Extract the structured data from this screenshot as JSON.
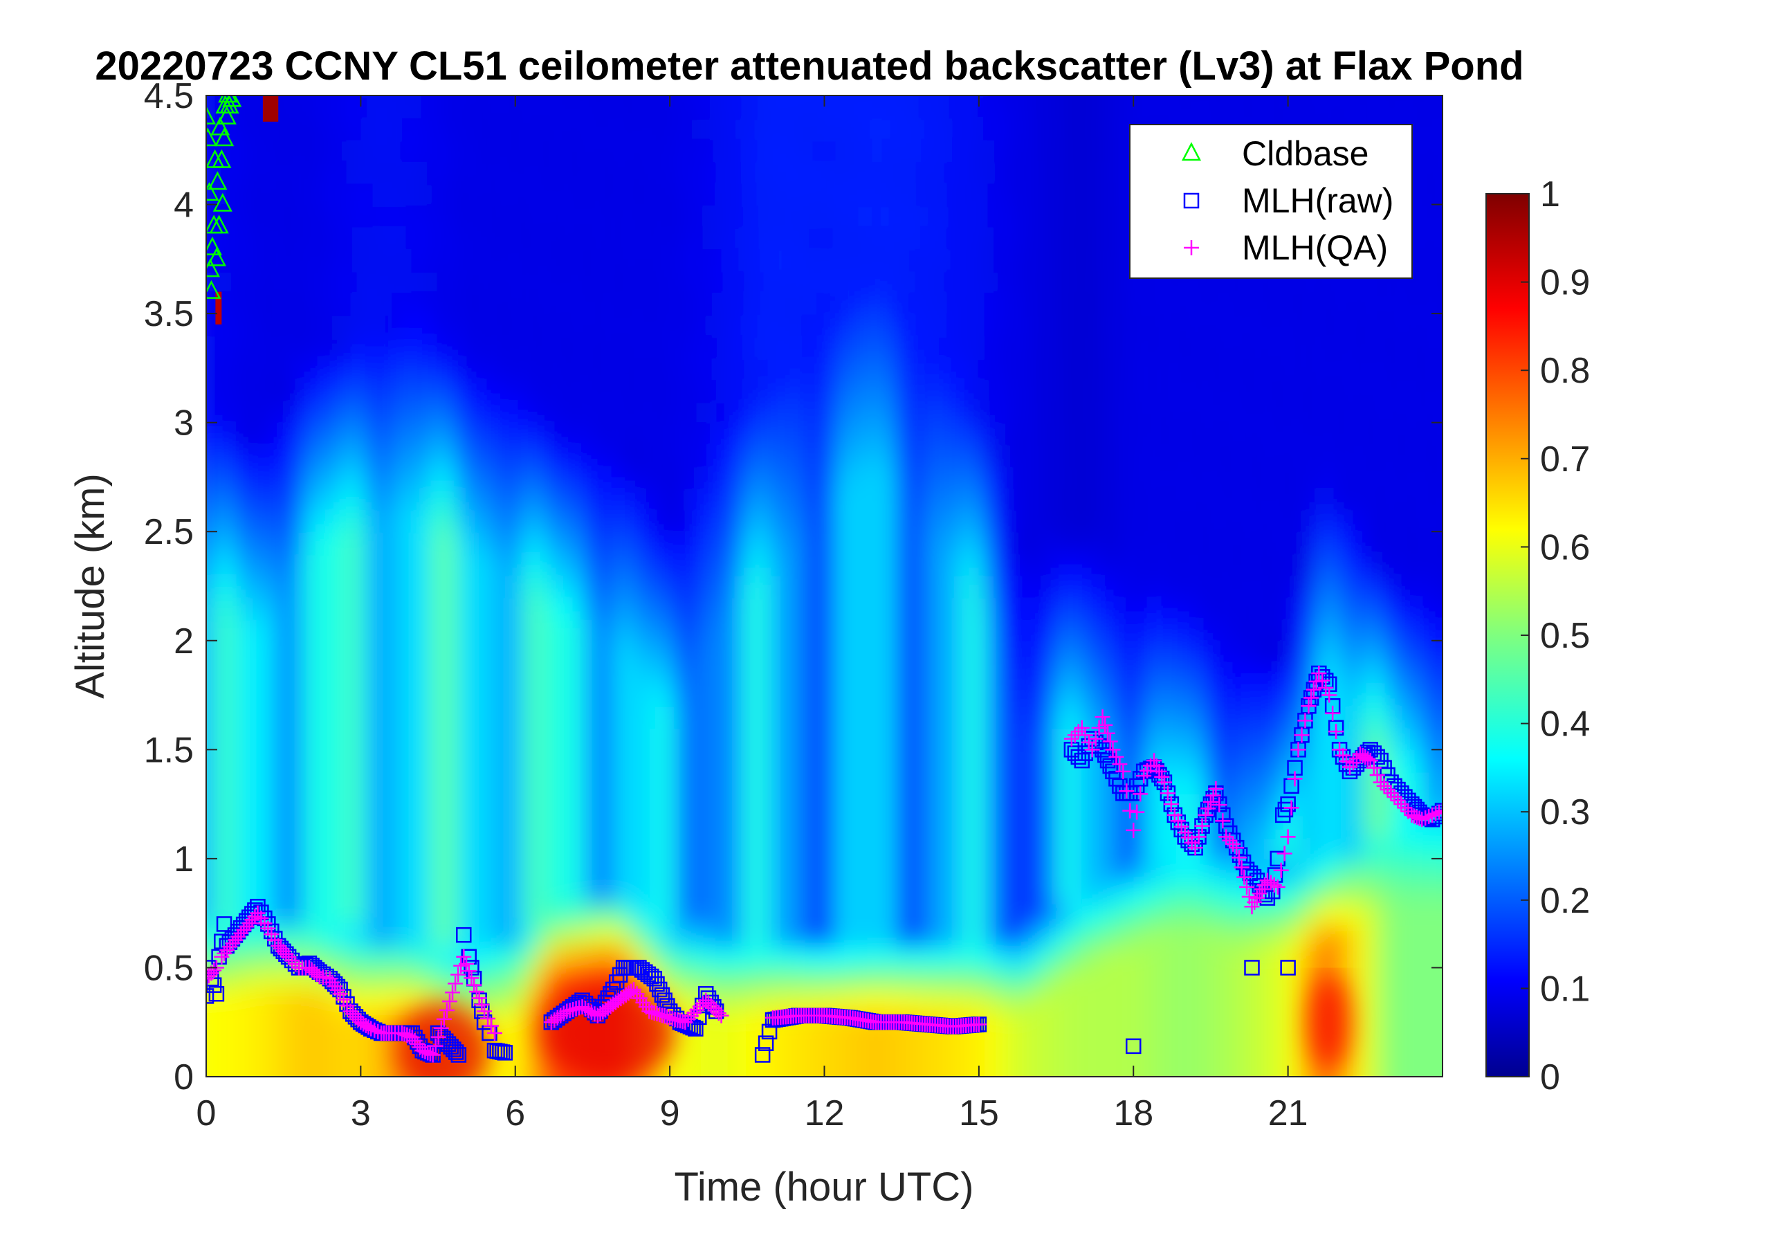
{
  "chart_data": {
    "type": "heatmap",
    "title": "20220723 CCNY CL51 ceilometer attenuated backscatter (Lv3) at Flax Pond",
    "xlabel": "Time (hour UTC)",
    "ylabel": "Altitude (km)",
    "xlim": [
      0,
      24
    ],
    "ylim": [
      0,
      4.5
    ],
    "xticks": [
      0,
      3,
      6,
      9,
      12,
      15,
      18,
      21
    ],
    "xtick_labels": [
      "0",
      "3",
      "6",
      "9",
      "12",
      "15",
      "18",
      "21"
    ],
    "yticks": [
      0,
      0.5,
      1,
      1.5,
      2,
      2.5,
      3,
      3.5,
      4,
      4.5
    ],
    "ytick_labels": [
      "0",
      "0.5",
      "1",
      "1.5",
      "2",
      "2.5",
      "3",
      "3.5",
      "4",
      "4.5"
    ],
    "colorbar": {
      "colormap": "jet",
      "range": [
        0,
        1
      ],
      "ticks": [
        0,
        0.1,
        0.2,
        0.3,
        0.4,
        0.5,
        0.6,
        0.7,
        0.8,
        0.9,
        1
      ],
      "tick_labels": [
        "0",
        "0.1",
        "0.2",
        "0.3",
        "0.4",
        "0.5",
        "0.6",
        "0.7",
        "0.8",
        "0.9",
        "1"
      ]
    },
    "legend": {
      "position": "top-right",
      "entries": [
        {
          "label": "Cldbase",
          "marker": "triangle",
          "color": "#00ff00"
        },
        {
          "label": "MLH(raw)",
          "marker": "square",
          "color": "#0000ff"
        },
        {
          "label": "MLH(QA)",
          "marker": "plus",
          "color": "#ff00ff"
        }
      ]
    },
    "heatmap_profile": [
      {
        "t": 0.0,
        "low": 0.62,
        "low_top": 0.35,
        "mid": 0.36,
        "mid_top": 2.2,
        "upper": 0.12
      },
      {
        "t": 1.0,
        "low": 0.64,
        "low_top": 0.4,
        "mid": 0.32,
        "mid_top": 2.0,
        "upper": 0.1
      },
      {
        "t": 2.0,
        "low": 0.68,
        "low_top": 0.35,
        "mid": 0.38,
        "mid_top": 2.4,
        "upper": 0.1
      },
      {
        "t": 3.0,
        "low": 0.66,
        "low_top": 0.3,
        "mid": 0.34,
        "mid_top": 2.5,
        "upper": 0.12
      },
      {
        "t": 4.0,
        "low": 0.74,
        "low_top": 0.25,
        "mid": 0.38,
        "mid_top": 2.6,
        "upper": 0.12
      },
      {
        "t": 5.0,
        "low": 0.66,
        "low_top": 0.2,
        "mid": 0.35,
        "mid_top": 2.4,
        "upper": 0.1
      },
      {
        "t": 6.0,
        "low": 0.62,
        "low_top": 0.25,
        "mid": 0.38,
        "mid_top": 2.3,
        "upper": 0.1
      },
      {
        "t": 6.7,
        "low": 0.8,
        "low_top": 0.45,
        "mid": 0.36,
        "mid_top": 2.1,
        "upper": 0.1
      },
      {
        "t": 8.0,
        "low": 0.82,
        "low_top": 0.5,
        "mid": 0.34,
        "mid_top": 2.0,
        "upper": 0.1
      },
      {
        "t": 9.0,
        "low": 0.62,
        "low_top": 0.35,
        "mid": 0.28,
        "mid_top": 1.6,
        "upper": 0.1
      },
      {
        "t": 10.0,
        "low": 0.6,
        "low_top": 0.3,
        "mid": 0.3,
        "mid_top": 2.1,
        "upper": 0.12
      },
      {
        "t": 11.0,
        "low": 0.64,
        "low_top": 0.3,
        "mid": 0.3,
        "mid_top": 2.3,
        "upper": 0.15
      },
      {
        "t": 12.0,
        "low": 0.66,
        "low_top": 0.3,
        "mid": 0.26,
        "mid_top": 2.6,
        "upper": 0.14
      },
      {
        "t": 13.0,
        "low": 0.68,
        "low_top": 0.3,
        "mid": 0.28,
        "mid_top": 2.8,
        "upper": 0.15
      },
      {
        "t": 14.0,
        "low": 0.66,
        "low_top": 0.3,
        "mid": 0.28,
        "mid_top": 2.5,
        "upper": 0.14
      },
      {
        "t": 15.0,
        "low": 0.64,
        "low_top": 0.3,
        "mid": 0.3,
        "mid_top": 2.2,
        "upper": 0.12
      },
      {
        "t": 15.8,
        "low": 0.58,
        "low_top": 0.3,
        "mid": 0.22,
        "mid_top": 1.5,
        "upper": 0.1
      },
      {
        "t": 17.0,
        "low": 0.55,
        "low_top": 0.5,
        "mid": 0.3,
        "mid_top": 1.6,
        "upper": 0.08
      },
      {
        "t": 18.0,
        "low": 0.55,
        "low_top": 0.6,
        "mid": 0.3,
        "mid_top": 1.4,
        "upper": 0.1
      },
      {
        "t": 19.0,
        "low": 0.52,
        "low_top": 0.7,
        "mid": 0.32,
        "mid_top": 1.3,
        "upper": 0.1
      },
      {
        "t": 20.0,
        "low": 0.55,
        "low_top": 0.6,
        "mid": 0.32,
        "mid_top": 1.1,
        "upper": 0.1
      },
      {
        "t": 21.0,
        "low": 0.6,
        "low_top": 0.6,
        "mid": 0.3,
        "mid_top": 1.0,
        "upper": 0.1
      },
      {
        "t": 21.7,
        "low": 0.78,
        "low_top": 0.6,
        "mid": 0.4,
        "mid_top": 1.9,
        "upper": 0.1
      },
      {
        "t": 23.0,
        "low": 0.5,
        "low_top": 0.8,
        "mid": 0.38,
        "mid_top": 1.4,
        "upper": 0.1
      },
      {
        "t": 24.0,
        "low": 0.5,
        "low_top": 0.8,
        "mid": 0.36,
        "mid_top": 1.3,
        "upper": 0.1
      }
    ],
    "series": [
      {
        "name": "Cldbase",
        "marker": "triangle",
        "color": "#00ff00",
        "x": [
          0.0,
          0.03,
          0.06,
          0.08,
          0.1,
          0.12,
          0.15,
          0.17,
          0.2,
          0.22,
          0.25,
          0.27,
          0.3,
          0.32,
          0.35,
          0.37,
          0.4,
          0.42,
          0.45,
          0.5
        ],
        "y": [
          4.4,
          4.3,
          4.05,
          3.7,
          3.6,
          3.8,
          3.9,
          4.2,
          3.75,
          4.1,
          3.9,
          4.35,
          4.2,
          4.0,
          4.3,
          4.45,
          4.4,
          4.5,
          4.45,
          4.48
        ]
      },
      {
        "name": "MLH(raw)",
        "marker": "square",
        "color": "#0000ff",
        "x": [
          0.0,
          0.05,
          0.1,
          0.15,
          0.2,
          0.25,
          0.3,
          0.35,
          0.4,
          1.0,
          1.2,
          1.4,
          1.6,
          1.8,
          2.0,
          2.2,
          2.4,
          2.6,
          2.8,
          3.0,
          3.2,
          3.4,
          3.6,
          3.8,
          4.0,
          4.2,
          4.4,
          4.5,
          4.9,
          5.0,
          5.1,
          5.2,
          5.3,
          5.4,
          5.5,
          5.6,
          5.8,
          6.7,
          7.0,
          7.3,
          7.6,
          7.9,
          8.1,
          8.4,
          8.7,
          9.0,
          9.2,
          9.5,
          9.7,
          9.9,
          10.8,
          11.0,
          11.5,
          12.0,
          12.5,
          13.0,
          13.5,
          14.0,
          14.5,
          15.0,
          16.8,
          17.0,
          17.2,
          17.4,
          17.6,
          17.8,
          18.0,
          18.2,
          18.4,
          18.6,
          18.8,
          19.0,
          19.2,
          19.4,
          19.6,
          19.8,
          20.0,
          20.2,
          20.4,
          20.5,
          20.6,
          20.7,
          20.8,
          20.9,
          21.0,
          21.2,
          21.4,
          21.6,
          21.8,
          22.0,
          22.2,
          22.4,
          22.6,
          22.8,
          23.0,
          23.2,
          23.4,
          23.6,
          23.8,
          24.0
        ],
        "y": [
          0.37,
          0.5,
          0.45,
          0.42,
          0.38,
          0.55,
          0.62,
          0.7,
          0.6,
          0.78,
          0.7,
          0.6,
          0.55,
          0.5,
          0.52,
          0.48,
          0.45,
          0.4,
          0.3,
          0.25,
          0.22,
          0.2,
          0.2,
          0.2,
          0.2,
          0.12,
          0.1,
          0.2,
          0.1,
          0.65,
          0.55,
          0.45,
          0.35,
          0.25,
          0.2,
          0.12,
          0.11,
          0.25,
          0.3,
          0.35,
          0.28,
          0.4,
          0.5,
          0.5,
          0.45,
          0.3,
          0.25,
          0.22,
          0.38,
          0.3,
          0.1,
          0.26,
          0.28,
          0.28,
          0.27,
          0.25,
          0.25,
          0.24,
          0.23,
          0.24,
          1.5,
          1.45,
          1.55,
          1.5,
          1.4,
          1.3,
          1.3,
          1.4,
          1.42,
          1.35,
          1.2,
          1.1,
          1.05,
          1.2,
          1.3,
          1.15,
          1.05,
          0.95,
          0.9,
          0.85,
          0.82,
          0.85,
          1.0,
          1.2,
          1.25,
          1.5,
          1.7,
          1.85,
          1.8,
          1.5,
          1.4,
          1.45,
          1.5,
          1.45,
          1.35,
          1.3,
          1.25,
          1.2,
          1.18,
          1.22
        ],
        "x_extra": [
          20.3,
          21.0,
          18.0
        ],
        "y_extra": [
          0.5,
          0.5,
          0.14
        ]
      },
      {
        "name": "MLH(QA)",
        "marker": "plus",
        "color": "#ff00ff",
        "x": [
          0.0,
          0.2,
          0.3,
          1.0,
          1.2,
          1.4,
          1.6,
          1.8,
          2.0,
          2.2,
          2.4,
          2.6,
          2.8,
          3.0,
          3.2,
          3.4,
          3.6,
          3.8,
          4.0,
          4.2,
          4.4,
          5.0,
          5.2,
          5.4,
          5.6,
          6.7,
          7.0,
          7.3,
          7.6,
          8.0,
          8.3,
          8.6,
          9.0,
          9.3,
          9.7,
          10.0,
          11.0,
          11.5,
          12.0,
          12.5,
          13.0,
          13.5,
          14.0,
          14.5,
          15.0,
          16.8,
          17.0,
          17.2,
          17.4,
          17.6,
          17.8,
          18.0,
          18.2,
          18.4,
          18.6,
          18.8,
          19.0,
          19.2,
          19.4,
          19.6,
          19.8,
          20.0,
          20.3,
          20.6,
          20.8,
          21.0,
          21.2,
          21.4,
          21.6,
          21.8,
          22.0,
          22.2,
          22.4,
          22.6,
          22.8,
          23.0,
          23.2,
          23.4,
          23.6,
          23.8,
          24.0
        ],
        "y": [
          0.45,
          0.5,
          0.55,
          0.75,
          0.68,
          0.6,
          0.55,
          0.5,
          0.5,
          0.46,
          0.45,
          0.38,
          0.3,
          0.25,
          0.22,
          0.2,
          0.2,
          0.2,
          0.18,
          0.12,
          0.1,
          0.55,
          0.42,
          0.3,
          0.2,
          0.25,
          0.3,
          0.32,
          0.28,
          0.35,
          0.4,
          0.3,
          0.27,
          0.25,
          0.35,
          0.28,
          0.27,
          0.28,
          0.28,
          0.27,
          0.25,
          0.25,
          0.24,
          0.23,
          0.24,
          1.55,
          1.6,
          1.5,
          1.65,
          1.5,
          1.4,
          1.13,
          1.38,
          1.45,
          1.35,
          1.2,
          1.12,
          1.05,
          1.2,
          1.32,
          1.1,
          1.05,
          0.78,
          0.9,
          0.87,
          1.1,
          1.5,
          1.7,
          1.85,
          1.75,
          1.5,
          1.42,
          1.48,
          1.45,
          1.35,
          1.3,
          1.25,
          1.2,
          1.18,
          1.2,
          1.22
        ]
      }
    ]
  }
}
